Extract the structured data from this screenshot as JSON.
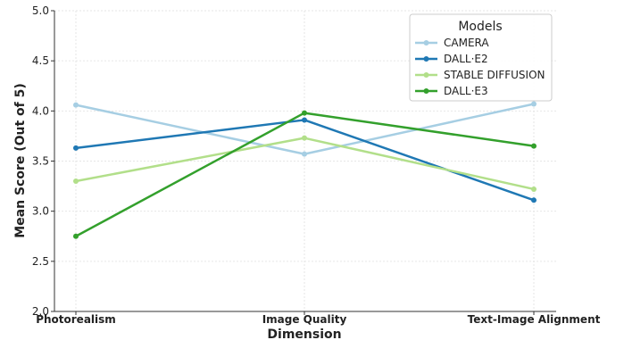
{
  "chart_data": {
    "type": "line",
    "categories": [
      "Photorealism",
      "Image Quality",
      "Text-Image Alignment"
    ],
    "series": [
      {
        "name": "CAMERA",
        "values": [
          4.06,
          3.57,
          4.07
        ],
        "color": "#a6cee3"
      },
      {
        "name": "DALL·E2",
        "values": [
          3.63,
          3.91,
          3.11
        ],
        "color": "#1f78b4"
      },
      {
        "name": "STABLE DIFFUSION",
        "values": [
          3.3,
          3.73,
          3.22
        ],
        "color": "#b2df8a"
      },
      {
        "name": "DALL·E3",
        "values": [
          2.75,
          3.98,
          3.65
        ],
        "color": "#33a02c"
      }
    ],
    "xlabel": "Dimension",
    "ylabel": "Mean Score (Out of 5)",
    "ylim": [
      2.0,
      5.0
    ],
    "yticks": [
      "2.0",
      "2.5",
      "3.0",
      "3.5",
      "4.0",
      "4.5",
      "5.0"
    ],
    "grid": true,
    "legend": {
      "title": "Models",
      "placement": "top-right"
    }
  }
}
